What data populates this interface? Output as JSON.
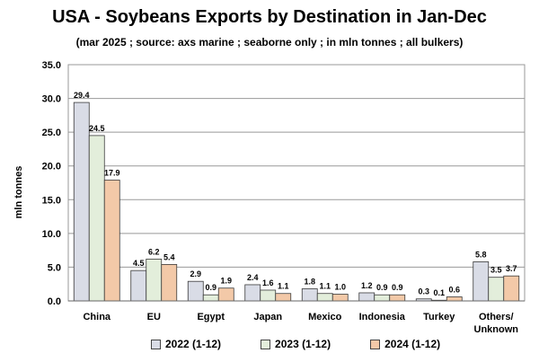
{
  "chart_data": {
    "type": "bar",
    "title": "USA - Soybeans Exports by Destination in Jan-Dec",
    "subtitle": "(mar 2025 ; source: axs marine ; seaborne only ; in mln tonnes ; all bulkers)",
    "ylabel": "mln tonnes",
    "xlabel": "",
    "ylim": [
      0,
      35
    ],
    "yticks": [
      "0.0",
      "5.0",
      "10.0",
      "15.0",
      "20.0",
      "25.0",
      "30.0",
      "35.0"
    ],
    "grid": true,
    "legend_position": "bottom",
    "categories": [
      "China",
      "EU",
      "Egypt",
      "Japan",
      "Mexico",
      "Indonesia",
      "Turkey",
      "Others/\nUnknown"
    ],
    "series": [
      {
        "name": "2022 (1-12)",
        "color": "#d9dce6",
        "values": [
          29.4,
          4.5,
          2.9,
          2.4,
          1.8,
          1.2,
          0.3,
          5.8
        ],
        "labels": [
          "29.4",
          "4.5",
          "2.9",
          "2.4",
          "1.8",
          "1.2",
          "0.3",
          "5.8"
        ]
      },
      {
        "name": "2023 (1-12)",
        "color": "#e3eedb",
        "values": [
          24.5,
          6.2,
          0.9,
          1.6,
          1.1,
          0.9,
          0.1,
          3.5
        ],
        "labels": [
          "24.5",
          "6.2",
          "0.9",
          "1.6",
          "1.1",
          "0.9",
          "0.1",
          "3.5"
        ]
      },
      {
        "name": "2024 (1-12)",
        "color": "#f3c9a8",
        "values": [
          17.9,
          5.4,
          1.9,
          1.1,
          1.0,
          0.9,
          0.6,
          3.7
        ],
        "labels": [
          "17.9",
          "5.4",
          "1.9",
          "1.1",
          "1.0",
          "0.9",
          "0.6",
          "3.7"
        ]
      }
    ]
  }
}
